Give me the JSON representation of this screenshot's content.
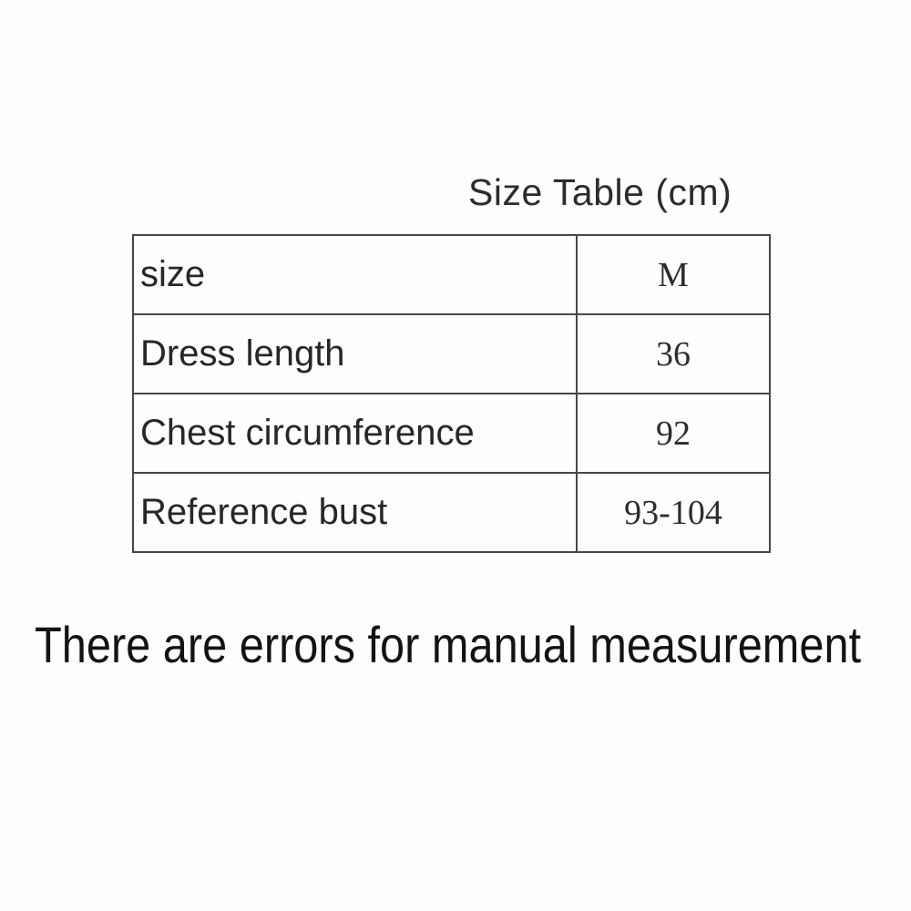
{
  "title": {
    "text": "Size Table (cm)"
  },
  "size_table": {
    "rows": [
      {
        "label": "size",
        "value": "M"
      },
      {
        "label": "Dress length",
        "value": "36"
      },
      {
        "label": "Chest circumference",
        "value": "92"
      },
      {
        "label": "Reference bust",
        "value": "93-104"
      }
    ]
  },
  "footnote": {
    "text": "There are errors for manual measurement"
  },
  "colors": {
    "background": "#fefefe",
    "table_border": "#474747",
    "label_text": "#26262b",
    "value_text": "#2c2c30",
    "footnote_text": "#131313",
    "title_text": "#2b2b31"
  }
}
